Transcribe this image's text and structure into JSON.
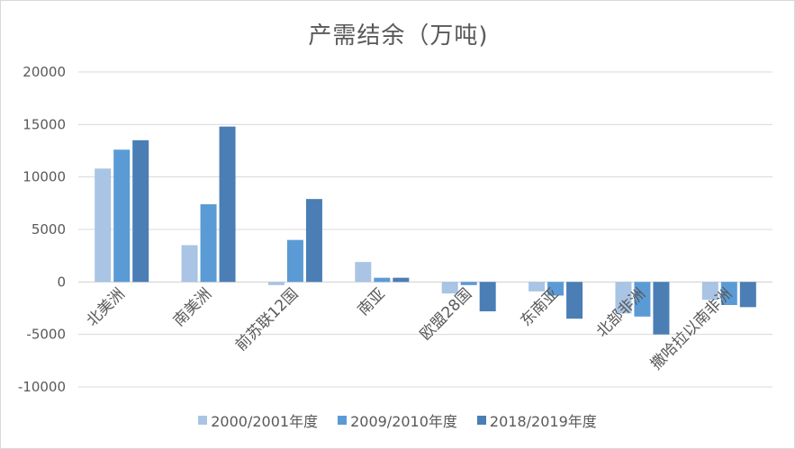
{
  "chart_data": {
    "type": "bar",
    "title": "产需结余（万吨)",
    "categories": [
      "北美洲",
      "南美洲",
      "前苏联12国",
      "南亚",
      "欧盟28国",
      "东南亚",
      "北部非洲",
      "撒哈拉以南非洲"
    ],
    "series": [
      {
        "name": "2000/2001年度",
        "color": "#a9c4e4",
        "values": [
          10800,
          3500,
          -300,
          1900,
          -1100,
          -900,
          -3000,
          -1700
        ]
      },
      {
        "name": "2009/2010年度",
        "color": "#5b9bd5",
        "values": [
          12600,
          7400,
          4000,
          400,
          -300,
          -1300,
          -3300,
          -2200
        ]
      },
      {
        "name": "2018/2019年度",
        "color": "#4a7eb5",
        "values": [
          13500,
          14800,
          7900,
          400,
          -2800,
          -3500,
          -5000,
          -2400
        ]
      }
    ],
    "ylim": [
      -10000,
      20000
    ],
    "yticks": [
      20000,
      15000,
      10000,
      5000,
      0,
      -5000,
      -10000
    ],
    "ytick_labels": [
      "20000",
      "15000",
      "10000",
      "5000",
      "0",
      "-5000",
      "-10000"
    ],
    "grid": true,
    "legend_position": "bottom"
  }
}
